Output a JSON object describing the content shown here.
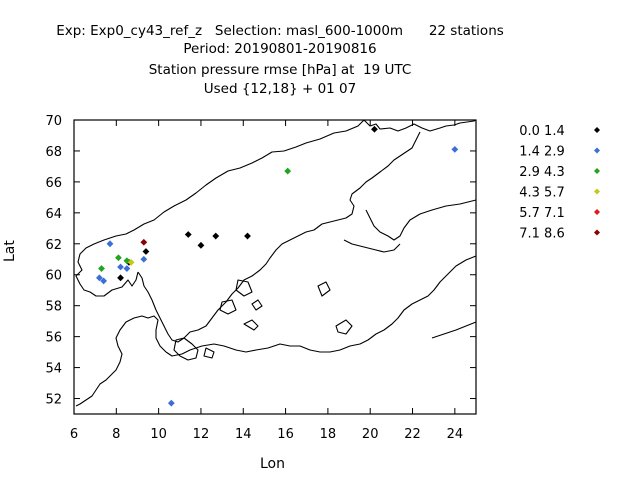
{
  "header": {
    "line1": "Exp: Exp0_cy43_ref_z   Selection: masl_600-1000m      22 stations",
    "line2": "Period: 20190801-20190816",
    "line3": "Station pressure rmse [hPa] at  19 UTC",
    "line4": "Used {12,18} + 01 07"
  },
  "chart_data": {
    "type": "scatter",
    "xlabel": "Lon",
    "ylabel": "Lat",
    "xlim": [
      6,
      25
    ],
    "ylim": [
      51,
      70
    ],
    "xticks": [
      "6",
      "8",
      "10",
      "12",
      "14",
      "16",
      "18",
      "20",
      "22",
      "24"
    ],
    "yticks": [
      "52",
      "54",
      "56",
      "58",
      "60",
      "62",
      "64",
      "66",
      "68",
      "70"
    ],
    "legend_position": "right",
    "legend": [
      {
        "label": "0.0 1.4",
        "color": "#000000"
      },
      {
        "label": "1.4 2.9",
        "color": "#3c6fd6"
      },
      {
        "label": "2.9 4.3",
        "color": "#1fa51f"
      },
      {
        "label": "4.3 5.7",
        "color": "#c7c71a"
      },
      {
        "label": "5.7 7.1",
        "color": "#e31a1a"
      },
      {
        "label": "7.1  8.6",
        "color": "#8b0000"
      }
    ],
    "points": [
      {
        "lon": 20.2,
        "lat": 69.4,
        "class": 0
      },
      {
        "lon": 11.4,
        "lat": 62.6,
        "class": 0
      },
      {
        "lon": 12.0,
        "lat": 61.9,
        "class": 0
      },
      {
        "lon": 12.7,
        "lat": 62.5,
        "class": 0
      },
      {
        "lon": 14.2,
        "lat": 62.5,
        "class": 0
      },
      {
        "lon": 9.4,
        "lat": 61.5,
        "class": 0
      },
      {
        "lon": 8.2,
        "lat": 59.8,
        "class": 0
      },
      {
        "lon": 8.6,
        "lat": 60.8,
        "class": 0
      },
      {
        "lon": 24.0,
        "lat": 68.1,
        "class": 1
      },
      {
        "lon": 7.7,
        "lat": 62.0,
        "class": 1
      },
      {
        "lon": 7.2,
        "lat": 59.8,
        "class": 1
      },
      {
        "lon": 7.4,
        "lat": 59.6,
        "class": 1
      },
      {
        "lon": 8.2,
        "lat": 60.5,
        "class": 1
      },
      {
        "lon": 8.5,
        "lat": 60.4,
        "class": 1
      },
      {
        "lon": 9.3,
        "lat": 61.0,
        "class": 1
      },
      {
        "lon": 10.6,
        "lat": 51.7,
        "class": 1
      },
      {
        "lon": 16.1,
        "lat": 66.7,
        "class": 2
      },
      {
        "lon": 8.1,
        "lat": 61.1,
        "class": 2
      },
      {
        "lon": 7.3,
        "lat": 60.4,
        "class": 2
      },
      {
        "lon": 8.5,
        "lat": 60.9,
        "class": 2
      },
      {
        "lon": 8.7,
        "lat": 60.8,
        "class": 3
      },
      {
        "lon": 9.3,
        "lat": 62.1,
        "class": 5
      }
    ]
  }
}
